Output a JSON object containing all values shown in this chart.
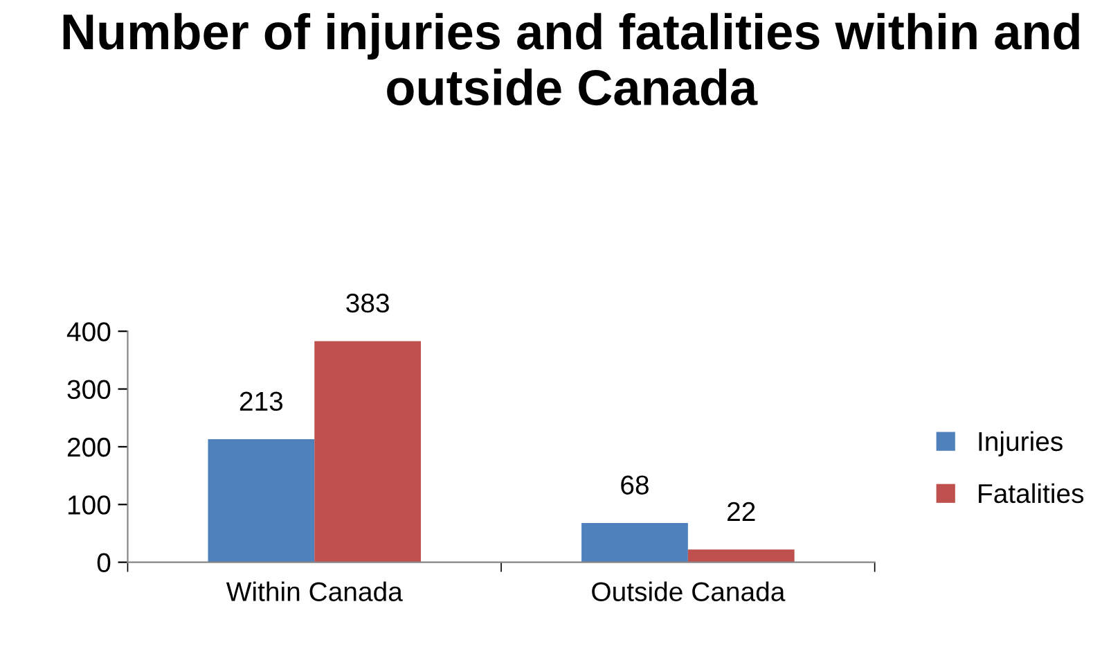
{
  "chart_data": {
    "type": "bar",
    "title": "Number of injuries and fatalities within and outside Canada",
    "categories": [
      "Within Canada",
      "Outside Canada"
    ],
    "series": [
      {
        "name": "Injuries",
        "color": "#4f81bd",
        "values": [
          213,
          68
        ]
      },
      {
        "name": "Fatalities",
        "color": "#c0504d",
        "values": [
          383,
          22
        ]
      }
    ],
    "ylim": [
      0,
      400
    ],
    "yticks": [
      0,
      100,
      200,
      300,
      400
    ],
    "grid": false,
    "legend": "right",
    "data_labels": true
  }
}
